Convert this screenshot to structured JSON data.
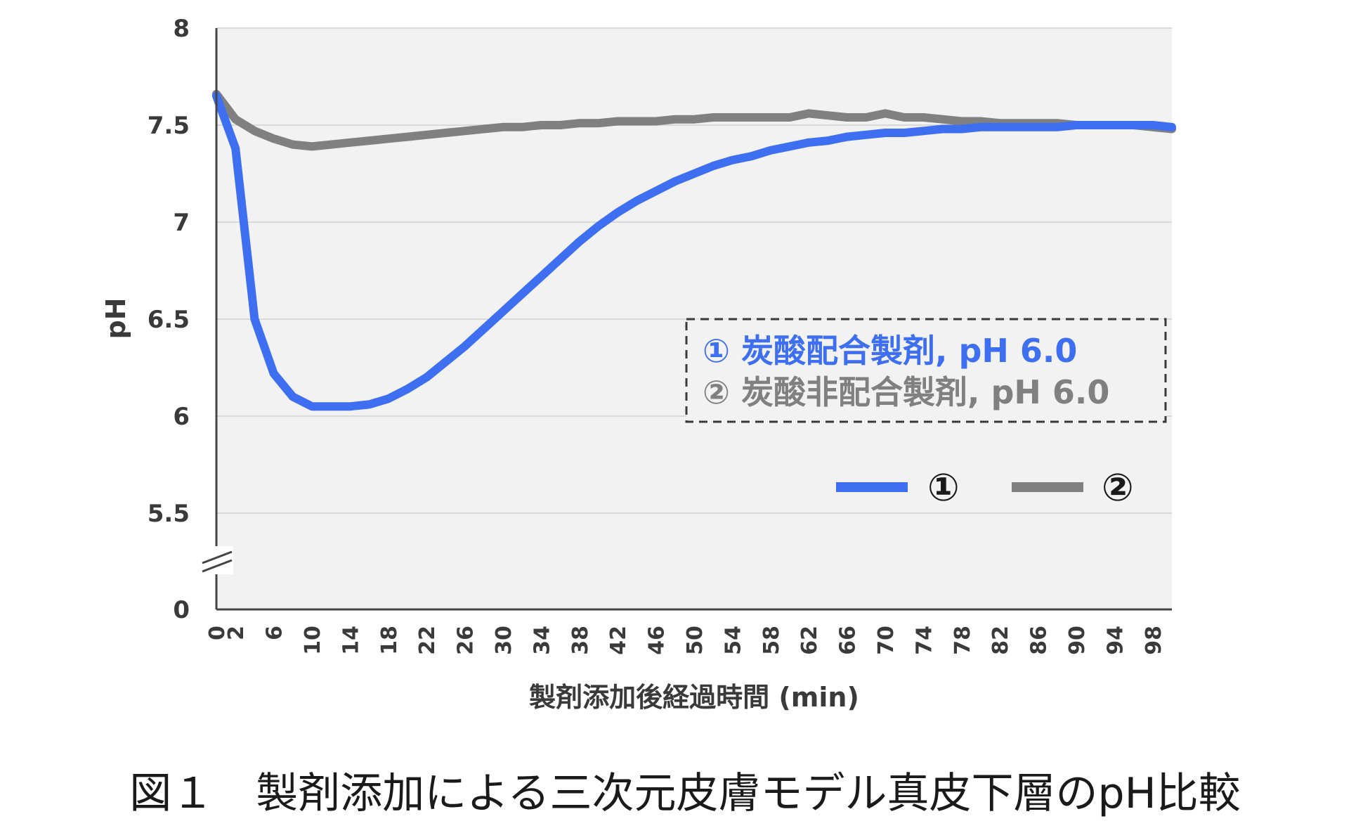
{
  "caption": "図１　製剤添加による三次元皮膚モデル真皮下層のpH比較",
  "chart_data": {
    "type": "line",
    "xlabel": "製剤添加後経過時間 (min)",
    "ylabel": "pH",
    "y_ticks": [
      "8",
      "7.5",
      "7",
      "6.5",
      "6",
      "5.5",
      "0"
    ],
    "y_tick_values": [
      8,
      7.5,
      7,
      6.5,
      6,
      5.5,
      0
    ],
    "y_axis_break": true,
    "ylim": [
      5.5,
      8
    ],
    "x_ticks": [
      "0",
      "2",
      "6",
      "10",
      "14",
      "18",
      "22",
      "26",
      "30",
      "34",
      "38",
      "42",
      "46",
      "50",
      "54",
      "58",
      "62",
      "66",
      "70",
      "74",
      "78",
      "82",
      "86",
      "90",
      "94",
      "98"
    ],
    "x_tick_values": [
      0,
      2,
      6,
      10,
      14,
      18,
      22,
      26,
      30,
      34,
      38,
      42,
      46,
      50,
      54,
      58,
      62,
      66,
      70,
      74,
      78,
      82,
      86,
      90,
      94,
      98
    ],
    "xlim": [
      0,
      100
    ],
    "grid": true,
    "legend_placement": "right",
    "series": [
      {
        "name": "①",
        "color": "#3d6ff0",
        "x": [
          0,
          2,
          4,
          6,
          8,
          10,
          12,
          14,
          16,
          18,
          20,
          22,
          24,
          26,
          28,
          30,
          32,
          34,
          36,
          38,
          40,
          42,
          44,
          46,
          48,
          50,
          52,
          54,
          56,
          58,
          60,
          62,
          64,
          66,
          68,
          70,
          72,
          74,
          76,
          78,
          80,
          82,
          84,
          86,
          88,
          90,
          92,
          94,
          96,
          98,
          100
        ],
        "y": [
          7.65,
          7.38,
          6.5,
          6.22,
          6.1,
          6.05,
          6.05,
          6.05,
          6.06,
          6.09,
          6.14,
          6.2,
          6.28,
          6.36,
          6.45,
          6.54,
          6.63,
          6.72,
          6.81,
          6.9,
          6.98,
          7.05,
          7.11,
          7.16,
          7.21,
          7.25,
          7.29,
          7.32,
          7.34,
          7.37,
          7.39,
          7.41,
          7.42,
          7.44,
          7.45,
          7.46,
          7.46,
          7.47,
          7.48,
          7.48,
          7.49,
          7.49,
          7.49,
          7.49,
          7.49,
          7.5,
          7.5,
          7.5,
          7.5,
          7.5,
          7.49
        ]
      },
      {
        "name": "②",
        "color": "#808080",
        "x": [
          0,
          2,
          4,
          6,
          8,
          10,
          12,
          14,
          16,
          18,
          20,
          22,
          24,
          26,
          28,
          30,
          32,
          34,
          36,
          38,
          40,
          42,
          44,
          46,
          48,
          50,
          52,
          54,
          56,
          58,
          60,
          62,
          64,
          66,
          68,
          70,
          72,
          74,
          76,
          78,
          80,
          82,
          84,
          86,
          88,
          90,
          92,
          94,
          96,
          98,
          100
        ],
        "y": [
          7.66,
          7.53,
          7.47,
          7.43,
          7.4,
          7.39,
          7.4,
          7.41,
          7.42,
          7.43,
          7.44,
          7.45,
          7.46,
          7.47,
          7.48,
          7.49,
          7.49,
          7.5,
          7.5,
          7.51,
          7.51,
          7.52,
          7.52,
          7.52,
          7.53,
          7.53,
          7.54,
          7.54,
          7.54,
          7.54,
          7.54,
          7.56,
          7.55,
          7.54,
          7.54,
          7.56,
          7.54,
          7.54,
          7.53,
          7.52,
          7.52,
          7.51,
          7.51,
          7.51,
          7.51,
          7.5,
          7.5,
          7.5,
          7.5,
          7.49,
          7.48
        ]
      }
    ],
    "annotation": {
      "line1": "① 炭酸配合製剤, pH 6.0",
      "line2": "② 炭酸非配合製剤, pH 6.0"
    },
    "legend": [
      {
        "label": "①",
        "color": "#3d6ff0"
      },
      {
        "label": "②",
        "color": "#808080"
      }
    ]
  }
}
